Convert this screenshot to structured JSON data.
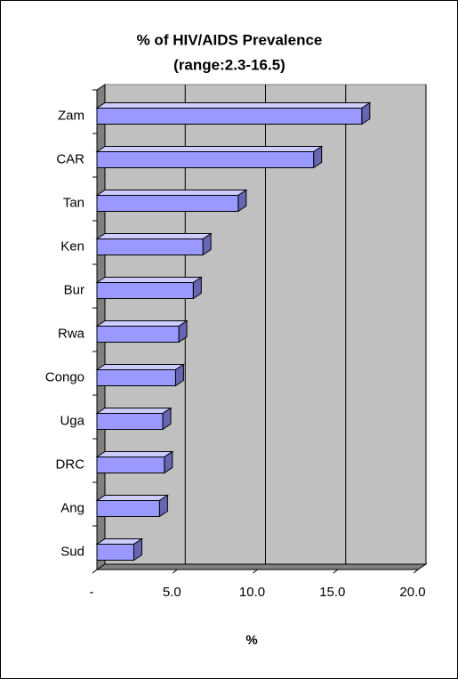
{
  "chart_data": {
    "type": "bar3d",
    "title": "% of HIV/AIDS Prevalence",
    "subtitle": "(range:2.3-16.5)",
    "x_label": "%",
    "categories": [
      "Zam",
      "CAR",
      "Tan",
      "Ken",
      "Bur",
      "Rwa",
      "Congo",
      "Uga",
      "DRC",
      "Ang",
      "Sud"
    ],
    "values": [
      16.5,
      13.5,
      8.8,
      6.6,
      6.0,
      5.1,
      4.9,
      4.1,
      4.2,
      3.9,
      2.3
    ],
    "color": "#9999ff",
    "xlim": [
      0,
      20
    ],
    "xticks": [
      {
        "value": 0,
        "label": "-"
      },
      {
        "value": 5,
        "label": "5.0"
      },
      {
        "value": 10,
        "label": "10.0"
      },
      {
        "value": 15,
        "label": "15.0"
      },
      {
        "value": 20,
        "label": "20.0"
      }
    ],
    "grid": true
  }
}
